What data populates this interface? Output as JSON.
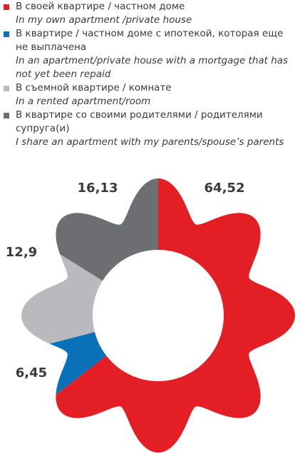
{
  "chart_data": {
    "type": "pie",
    "categories": [
      "В своей квартире / частном доме",
      "В квартире / частном доме с ипотекой, которая еще не выплачена",
      "В съемной квартире / комнате",
      "В квартире со своими родителями / родителями супруга(и)"
    ],
    "categories_en": [
      "In my own apartment /private house",
      "In an apartment/private house with a mortgage that has not yet been repaid",
      "In a rented apartment/room",
      "I share an apartment with my parents/spouse’s parents"
    ],
    "values": [
      64.52,
      6.45,
      12.9,
      16.13
    ],
    "value_labels": [
      "64,52",
      "6,45",
      "12,9",
      "16,13"
    ],
    "colors": [
      "#e31e24",
      "#0a70b8",
      "#b9babe",
      "#6d6e71"
    ]
  }
}
